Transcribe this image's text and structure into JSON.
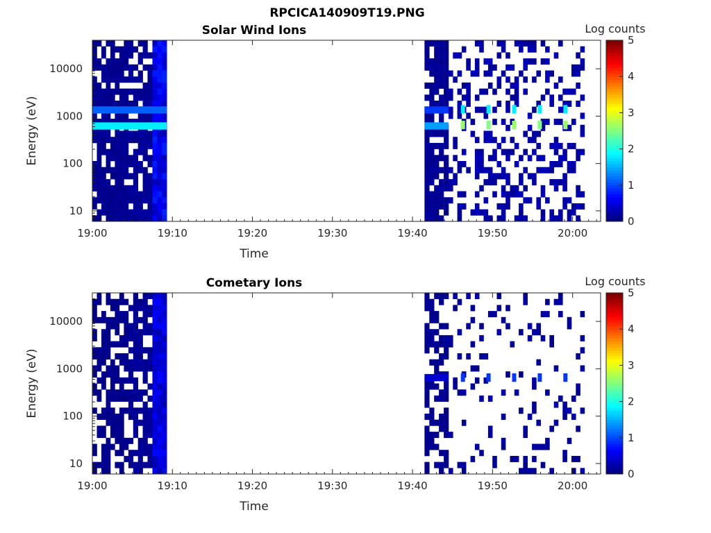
{
  "figure": {
    "title": "RPCICA140909T19.PNG"
  },
  "colorbar": {
    "label": "Log counts",
    "ticks": [
      "0",
      "1",
      "2",
      "3",
      "4",
      "5"
    ],
    "range": [
      0,
      5
    ],
    "colormap": "jet"
  },
  "chart_data": [
    {
      "type": "heatmap",
      "title": "Solar Wind Ions",
      "xlabel": "Time",
      "ylabel": "Energy (eV)",
      "x_ticks": [
        "19:00",
        "19:10",
        "19:20",
        "19:30",
        "19:40",
        "19:50",
        "20:00"
      ],
      "y_ticks": [
        "10",
        "100",
        "1000",
        "10000"
      ],
      "y_scale": "log",
      "xlim_minutes": [
        0,
        63.5
      ],
      "ylim": [
        6,
        40000
      ],
      "blocks": [
        {
          "t": [
            0,
            4.5
          ],
          "level": 0.08,
          "coverage": 0.86,
          "seed": 11
        },
        {
          "t": [
            4.5,
            7.5
          ],
          "level": 0.12,
          "coverage": 0.8,
          "seed": 12
        },
        {
          "t": [
            7.5,
            9.3
          ],
          "level": 0.55,
          "coverage": 1.0,
          "seed": 13
        },
        {
          "t": [
            41.5,
            44.5
          ],
          "level": 0.1,
          "coverage": 0.82,
          "seed": 14
        },
        {
          "t": [
            44.5,
            61.5
          ],
          "level": 0.2,
          "coverage": 0.3,
          "seed": 15
        }
      ],
      "bands": [
        {
          "E": 620,
          "level": 1.8,
          "t": [
            0,
            9.3
          ]
        },
        {
          "E": 1350,
          "level": 1.1,
          "t": [
            0,
            9.3
          ]
        },
        {
          "E": 620,
          "level": 1.4,
          "t": [
            41.5,
            44.5
          ]
        },
        {
          "E": 1350,
          "level": 0.9,
          "t": [
            41.5,
            44.5
          ]
        }
      ],
      "spots": [
        {
          "t": 46.3,
          "E": 650,
          "level": 2.6
        },
        {
          "t": 49.5,
          "E": 650,
          "level": 2.5
        },
        {
          "t": 52.7,
          "E": 650,
          "level": 2.6
        },
        {
          "t": 55.9,
          "E": 650,
          "level": 2.5
        },
        {
          "t": 59.1,
          "E": 650,
          "level": 2.6
        },
        {
          "t": 46.3,
          "E": 1400,
          "level": 1.8
        },
        {
          "t": 49.5,
          "E": 1400,
          "level": 1.8
        },
        {
          "t": 52.7,
          "E": 1400,
          "level": 1.8
        },
        {
          "t": 55.9,
          "E": 1400,
          "level": 1.8
        },
        {
          "t": 59.1,
          "E": 1400,
          "level": 1.8
        }
      ]
    },
    {
      "type": "heatmap",
      "title": "Cometary Ions",
      "xlabel": "Time",
      "ylabel": "Energy (eV)",
      "x_ticks": [
        "19:00",
        "19:10",
        "19:20",
        "19:30",
        "19:40",
        "19:50",
        "20:00"
      ],
      "y_ticks": [
        "10",
        "100",
        "1000",
        "10000"
      ],
      "y_scale": "log",
      "xlim_minutes": [
        0,
        63.5
      ],
      "ylim": [
        6,
        40000
      ],
      "blocks": [
        {
          "t": [
            0,
            4.5
          ],
          "level": 0.06,
          "coverage": 0.62,
          "seed": 21
        },
        {
          "t": [
            4.5,
            7.5
          ],
          "level": 0.1,
          "coverage": 0.7,
          "seed": 22
        },
        {
          "t": [
            7.5,
            9.3
          ],
          "level": 0.45,
          "coverage": 1.0,
          "seed": 23
        },
        {
          "t": [
            41.5,
            44.5
          ],
          "level": 0.08,
          "coverage": 0.6,
          "seed": 24
        },
        {
          "t": [
            44.5,
            61.5
          ],
          "level": 0.15,
          "coverage": 0.14,
          "seed": 25
        }
      ],
      "bands": [
        {
          "E": 650,
          "level": 0.4,
          "t": [
            41.5,
            44.5
          ]
        }
      ],
      "spots": [
        {
          "t": 46.3,
          "E": 650,
          "level": 0.9
        },
        {
          "t": 49.5,
          "E": 650,
          "level": 0.9
        },
        {
          "t": 52.7,
          "E": 650,
          "level": 0.9
        },
        {
          "t": 55.9,
          "E": 650,
          "level": 0.9
        },
        {
          "t": 59.1,
          "E": 650,
          "level": 0.9
        }
      ]
    }
  ]
}
